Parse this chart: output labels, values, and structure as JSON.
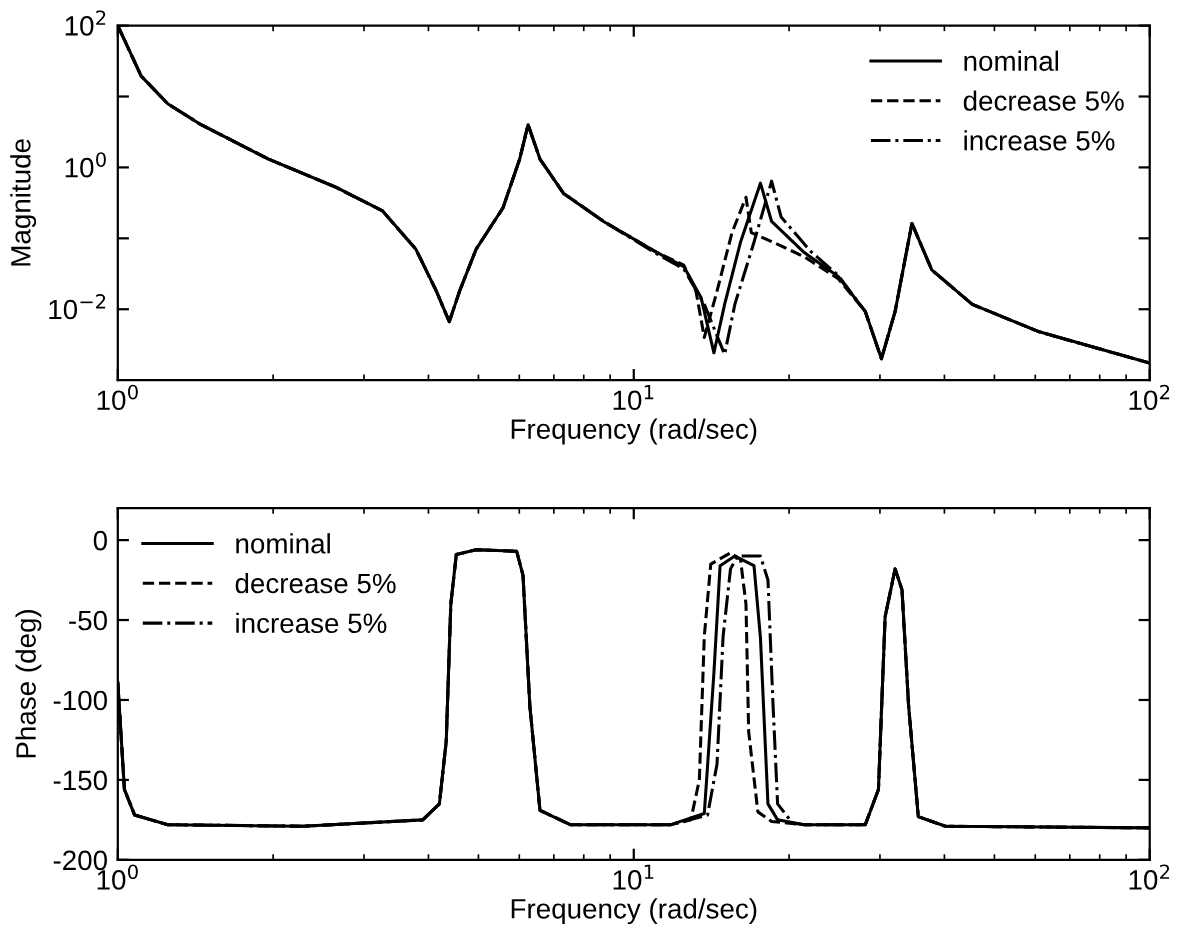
{
  "chart_data": [
    {
      "type": "line",
      "xlabel": "Frequency (rad/sec)",
      "ylabel": "Magnitude",
      "log": "xy",
      "legend": "top right",
      "grid": false,
      "marker": "none",
      "xlim": [
        1,
        100
      ],
      "xticks": [
        {
          "value": 1,
          "label": "10$^{0}$"
        },
        {
          "value": 10,
          "label": "10$^{1}$"
        },
        {
          "value": 100,
          "label": "10$^{2}$"
        }
      ],
      "ylim": [
        0.001,
        100
      ],
      "yticks": [
        {
          "value": 100,
          "label": "10$^{2}$"
        },
        {
          "value": 10,
          "label": null
        },
        {
          "value": 1,
          "label": "10$^{0}$"
        },
        {
          "value": 0.1,
          "label": null
        },
        {
          "value": 0.01,
          "label": "10$^{−2}$"
        }
      ],
      "series": [
        {
          "name": "nominal",
          "color": "#000000",
          "line_style": "solid",
          "x": [
            1,
            1.11,
            1.25,
            1.45,
            1.96,
            2.64,
            3.26,
            3.78,
            4.14,
            4.39,
            4.6,
            4.95,
            5.58,
            6.01,
            6.24,
            6.58,
            7.31,
            8.74,
            11.1,
            12.5,
            13.5,
            14.3,
            15.0,
            16.1,
            17.6,
            18.5,
            21.4,
            24.9,
            28.1,
            30.2,
            32.1,
            34.6,
            37.8,
            45.3,
            61.1,
            100
          ],
          "values": [
            100,
            19.4,
            7.9,
            4.0,
            1.31,
            0.53,
            0.243,
            0.0706,
            0.0183,
            0.00667,
            0.0183,
            0.0706,
            0.27,
            1.31,
            4.0,
            1.31,
            0.43,
            0.173,
            0.063,
            0.04,
            0.0147,
            0.00243,
            0.0117,
            0.088,
            0.6,
            0.173,
            0.063,
            0.029,
            0.0093,
            0.002,
            0.0093,
            0.162,
            0.036,
            0.0117,
            0.0048,
            0.00174
          ]
        },
        {
          "name": "decrease 5%",
          "color": "#000000",
          "line_style": "dashed",
          "x": [
            1,
            1.11,
            1.25,
            1.45,
            1.96,
            2.64,
            3.26,
            3.78,
            4.14,
            4.39,
            4.6,
            4.95,
            5.58,
            6.01,
            6.24,
            6.58,
            7.31,
            8.74,
            11.1,
            12.5,
            13.2,
            13.7,
            14.5,
            15.5,
            16.5,
            16.9,
            18.5,
            21.4,
            24.9,
            28.1,
            30.2,
            32.1,
            34.6,
            37.8,
            45.3,
            61.1,
            100
          ],
          "values": [
            100,
            19.4,
            7.9,
            4.0,
            1.31,
            0.53,
            0.243,
            0.0706,
            0.0183,
            0.00667,
            0.0183,
            0.0706,
            0.27,
            1.31,
            4.0,
            1.31,
            0.43,
            0.173,
            0.063,
            0.042,
            0.018,
            0.004,
            0.018,
            0.12,
            0.38,
            0.12,
            0.09,
            0.055,
            0.027,
            0.0093,
            0.002,
            0.0093,
            0.162,
            0.036,
            0.0117,
            0.0048,
            0.00174
          ]
        },
        {
          "name": "increase 5%",
          "color": "#000000",
          "line_style": "dashdot",
          "x": [
            1,
            1.11,
            1.25,
            1.45,
            1.96,
            2.64,
            3.26,
            3.78,
            4.14,
            4.39,
            4.6,
            4.95,
            5.58,
            6.01,
            6.24,
            6.58,
            7.31,
            8.74,
            11.1,
            12.5,
            13.7,
            15.0,
            15.7,
            17.1,
            18.5,
            19.3,
            22.0,
            24.9,
            28.1,
            30.2,
            32.1,
            34.6,
            37.8,
            45.3,
            61.1,
            100
          ],
          "values": [
            100,
            19.4,
            7.9,
            4.0,
            1.31,
            0.53,
            0.243,
            0.0706,
            0.0183,
            0.00667,
            0.0183,
            0.0706,
            0.27,
            1.31,
            4.0,
            1.31,
            0.43,
            0.173,
            0.06,
            0.037,
            0.0117,
            0.0023,
            0.0117,
            0.088,
            0.64,
            0.2,
            0.066,
            0.03,
            0.0093,
            0.002,
            0.0093,
            0.162,
            0.036,
            0.0117,
            0.0048,
            0.00174
          ]
        }
      ]
    },
    {
      "type": "line",
      "xlabel": "Frequency (rad/sec)",
      "ylabel": "Phase (deg)",
      "log": "x",
      "legend": "top left",
      "grid": false,
      "marker": "none",
      "xlim": [
        1,
        100
      ],
      "xticks": [
        {
          "value": 1,
          "label": "10$^{0}$"
        },
        {
          "value": 10,
          "label": "10$^{1}$"
        },
        {
          "value": 100,
          "label": "10$^{2}$"
        }
      ],
      "ylim": [
        -200,
        20
      ],
      "yticks": [
        -200,
        -150,
        -100,
        -50,
        0
      ],
      "series": [
        {
          "name": "nominal",
          "color": "#000000",
          "line_style": "solid",
          "x": [
            1,
            1.03,
            1.078,
            1.25,
            2.28,
            3.9,
            4.2,
            4.33,
            4.42,
            4.53,
            4.95,
            5.93,
            6.1,
            6.29,
            6.58,
            7.53,
            11.8,
            13.7,
            14.3,
            14.7,
            15.7,
            17.1,
            17.6,
            18.2,
            19.0,
            21.4,
            28.1,
            29.8,
            30.7,
            32.1,
            33.1,
            34.1,
            35.6,
            40.2,
            100
          ],
          "values": [
            -89,
            -156,
            -172,
            -178,
            -179,
            -175,
            -165,
            -126,
            -40,
            -9,
            -6,
            -7,
            -22,
            -104,
            -169,
            -178,
            -178,
            -171,
            -83,
            -16,
            -10,
            -16,
            -61,
            -165,
            -175,
            -178,
            -178,
            -156,
            -48,
            -18,
            -31,
            -104,
            -173,
            -179,
            -180
          ]
        },
        {
          "name": "decrease 5%",
          "color": "#000000",
          "line_style": "dashed",
          "x": [
            1,
            1.03,
            1.078,
            1.25,
            2.28,
            3.9,
            4.2,
            4.33,
            4.42,
            4.53,
            4.95,
            5.93,
            6.1,
            6.29,
            6.58,
            7.53,
            11.8,
            12.9,
            13.4,
            13.7,
            14.1,
            15.4,
            16.1,
            16.5,
            16.7,
            17.4,
            18.5,
            21.4,
            28.1,
            29.8,
            30.7,
            32.1,
            33.1,
            34.1,
            35.6,
            40.2,
            100
          ],
          "values": [
            -89,
            -156,
            -172,
            -178,
            -179,
            -175,
            -165,
            -126,
            -40,
            -9,
            -6,
            -7,
            -22,
            -104,
            -169,
            -178,
            -178,
            -175,
            -150,
            -60,
            -15,
            -8,
            -12,
            -40,
            -120,
            -170,
            -176,
            -178,
            -178,
            -156,
            -48,
            -18,
            -31,
            -104,
            -173,
            -179,
            -180
          ]
        },
        {
          "name": "increase 5%",
          "color": "#000000",
          "line_style": "dashdot",
          "x": [
            1,
            1.03,
            1.078,
            1.25,
            2.28,
            3.9,
            4.2,
            4.33,
            4.42,
            4.53,
            4.95,
            5.93,
            6.1,
            6.29,
            6.58,
            7.53,
            11.8,
            13.9,
            14.5,
            14.9,
            15.4,
            15.9,
            17.6,
            18.2,
            18.6,
            19.0,
            20.3,
            21.4,
            28.1,
            29.8,
            30.7,
            32.1,
            33.1,
            34.1,
            35.6,
            40.2,
            100
          ],
          "values": [
            -89,
            -156,
            -172,
            -178,
            -179,
            -175,
            -165,
            -126,
            -40,
            -9,
            -6,
            -7,
            -22,
            -104,
            -169,
            -178,
            -178,
            -172,
            -140,
            -60,
            -18,
            -10,
            -10,
            -25,
            -100,
            -165,
            -177,
            -178,
            -178,
            -156,
            -48,
            -18,
            -31,
            -104,
            -173,
            -179,
            -180
          ]
        }
      ]
    }
  ]
}
